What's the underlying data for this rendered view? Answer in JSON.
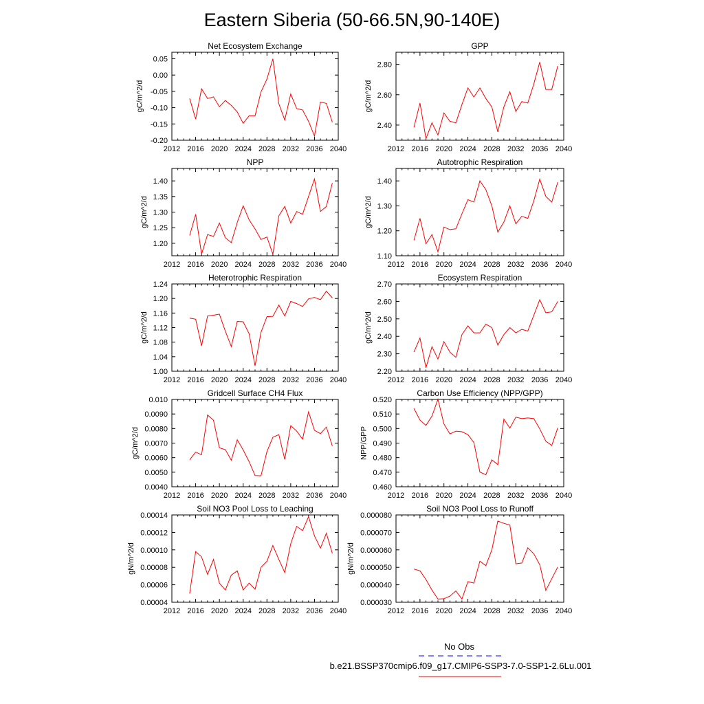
{
  "title": "Eastern Siberia (50-66.5N,90-140E)",
  "legend": {
    "items": [
      {
        "label": "No Obs",
        "color": "#0000ff",
        "dash": true
      },
      {
        "label": "b.e21.BSSP370cmip6.f09_g17.CMIP6-SSP3-7.0-SSP1-2.6Lu.001",
        "color": "#ff0000",
        "dash": false
      }
    ]
  },
  "chart_data": [
    {
      "type": "line",
      "title": "Net Ecosystem Exchange",
      "xlabel": "",
      "ylabel": "gC/m^2/d",
      "xlim": [
        2012,
        2040
      ],
      "ylim": [
        -0.2,
        0.07
      ],
      "xticks": [
        2012,
        2016,
        2020,
        2024,
        2028,
        2032,
        2036,
        2040
      ],
      "xtick_labels": [
        "2012",
        "2016",
        "2020",
        "2024",
        "2028",
        "2032",
        "2036",
        "2040"
      ],
      "yticks": [
        -0.2,
        -0.15,
        -0.1,
        -0.05,
        0.0,
        0.05
      ],
      "ytick_labels": [
        "-0.20",
        "-0.15",
        "-0.10",
        "-0.05",
        "0.00",
        "0.05"
      ],
      "x": [
        2015,
        2016,
        2017,
        2018,
        2019,
        2020,
        2021,
        2022,
        2023,
        2024,
        2025,
        2026,
        2027,
        2028,
        2029,
        2030,
        2031,
        2032,
        2033,
        2034,
        2035,
        2036,
        2037,
        2038,
        2039
      ],
      "series": [
        {
          "color": "#ff0000",
          "values": [
            -0.072,
            -0.135,
            -0.042,
            -0.072,
            -0.067,
            -0.097,
            -0.078,
            -0.093,
            -0.113,
            -0.148,
            -0.125,
            -0.125,
            -0.052,
            -0.012,
            0.05,
            -0.088,
            -0.138,
            -0.058,
            -0.103,
            -0.107,
            -0.142,
            -0.187,
            -0.083,
            -0.087,
            -0.145
          ]
        }
      ]
    },
    {
      "type": "line",
      "title": "GPP",
      "xlabel": "",
      "ylabel": "gC/m^2/d",
      "xlim": [
        2012,
        2040
      ],
      "ylim": [
        2.3,
        2.88
      ],
      "xticks": [
        2012,
        2016,
        2020,
        2024,
        2028,
        2032,
        2036,
        2040
      ],
      "xtick_labels": [
        "2012",
        "2016",
        "2020",
        "2024",
        "2028",
        "2032",
        "2036",
        "2040"
      ],
      "yticks": [
        2.4,
        2.6,
        2.8
      ],
      "ytick_labels": [
        "2.40",
        "2.60",
        "2.80"
      ],
      "x": [
        2015,
        2016,
        2017,
        2018,
        2019,
        2020,
        2021,
        2022,
        2023,
        2024,
        2025,
        2026,
        2027,
        2028,
        2029,
        2030,
        2031,
        2032,
        2033,
        2034,
        2035,
        2036,
        2037,
        2038,
        2039
      ],
      "series": [
        {
          "color": "#ff0000",
          "values": [
            2.385,
            2.545,
            2.31,
            2.415,
            2.335,
            2.48,
            2.425,
            2.415,
            2.535,
            2.645,
            2.585,
            2.645,
            2.575,
            2.52,
            2.355,
            2.52,
            2.62,
            2.49,
            2.555,
            2.545,
            2.67,
            2.815,
            2.635,
            2.635,
            2.79
          ]
        }
      ]
    },
    {
      "type": "line",
      "title": "NPP",
      "xlabel": "",
      "ylabel": "gC/m^2/d",
      "xlim": [
        2012,
        2040
      ],
      "ylim": [
        1.16,
        1.44
      ],
      "xticks": [
        2012,
        2016,
        2020,
        2024,
        2028,
        2032,
        2036,
        2040
      ],
      "xtick_labels": [
        "2012",
        "2016",
        "2020",
        "2024",
        "2028",
        "2032",
        "2036",
        "2040"
      ],
      "yticks": [
        1.2,
        1.25,
        1.3,
        1.35,
        1.4
      ],
      "ytick_labels": [
        "1.20",
        "1.25",
        "1.30",
        "1.35",
        "1.40"
      ],
      "x": [
        2015,
        2016,
        2017,
        2018,
        2019,
        2020,
        2021,
        2022,
        2023,
        2024,
        2025,
        2026,
        2027,
        2028,
        2029,
        2030,
        2031,
        2032,
        2033,
        2034,
        2035,
        2036,
        2037,
        2038,
        2039
      ],
      "series": [
        {
          "color": "#ff0000",
          "values": [
            1.225,
            1.293,
            1.165,
            1.228,
            1.222,
            1.265,
            1.218,
            1.202,
            1.267,
            1.32,
            1.275,
            1.246,
            1.212,
            1.22,
            1.165,
            1.288,
            1.318,
            1.265,
            1.302,
            1.293,
            1.35,
            1.406,
            1.302,
            1.318,
            1.393
          ]
        }
      ]
    },
    {
      "type": "line",
      "title": "Autotrophic Respiration",
      "xlabel": "",
      "ylabel": "gC/m^2/d",
      "xlim": [
        2012,
        2040
      ],
      "ylim": [
        1.1,
        1.45
      ],
      "xticks": [
        2012,
        2016,
        2020,
        2024,
        2028,
        2032,
        2036,
        2040
      ],
      "xtick_labels": [
        "2012",
        "2016",
        "2020",
        "2024",
        "2028",
        "2032",
        "2036",
        "2040"
      ],
      "yticks": [
        1.1,
        1.2,
        1.3,
        1.4
      ],
      "ytick_labels": [
        "1.10",
        "1.20",
        "1.30",
        "1.40"
      ],
      "x": [
        2015,
        2016,
        2017,
        2018,
        2019,
        2020,
        2021,
        2022,
        2023,
        2024,
        2025,
        2026,
        2027,
        2028,
        2029,
        2030,
        2031,
        2032,
        2033,
        2034,
        2035,
        2036,
        2037,
        2038,
        2039
      ],
      "series": [
        {
          "color": "#ff0000",
          "values": [
            1.162,
            1.25,
            1.148,
            1.185,
            1.116,
            1.215,
            1.205,
            1.208,
            1.268,
            1.325,
            1.315,
            1.4,
            1.365,
            1.3,
            1.195,
            1.235,
            1.3,
            1.228,
            1.258,
            1.25,
            1.32,
            1.407,
            1.338,
            1.315,
            1.395
          ]
        }
      ]
    },
    {
      "type": "line",
      "title": "Heterotrophic Respiration",
      "xlabel": "",
      "ylabel": "gC/m^2/d",
      "xlim": [
        2012,
        2040
      ],
      "ylim": [
        1.0,
        1.24
      ],
      "xticks": [
        2012,
        2016,
        2020,
        2024,
        2028,
        2032,
        2036,
        2040
      ],
      "xtick_labels": [
        "2012",
        "2016",
        "2020",
        "2024",
        "2028",
        "2032",
        "2036",
        "2040"
      ],
      "yticks": [
        1.0,
        1.04,
        1.08,
        1.12,
        1.16,
        1.2,
        1.24
      ],
      "ytick_labels": [
        "1.00",
        "1.04",
        "1.08",
        "1.12",
        "1.16",
        "1.20",
        "1.24"
      ],
      "x": [
        2015,
        2016,
        2017,
        2018,
        2019,
        2020,
        2021,
        2022,
        2023,
        2024,
        2025,
        2026,
        2027,
        2028,
        2029,
        2030,
        2031,
        2032,
        2033,
        2034,
        2035,
        2036,
        2037,
        2038,
        2039
      ],
      "series": [
        {
          "color": "#ff0000",
          "values": [
            1.146,
            1.143,
            1.07,
            1.152,
            1.154,
            1.157,
            1.11,
            1.068,
            1.137,
            1.136,
            1.103,
            1.015,
            1.107,
            1.15,
            1.151,
            1.182,
            1.152,
            1.192,
            1.186,
            1.178,
            1.199,
            1.203,
            1.197,
            1.22,
            1.202
          ]
        }
      ]
    },
    {
      "type": "line",
      "title": "Ecosystem Respiration",
      "xlabel": "",
      "ylabel": "gC/m^2/d",
      "xlim": [
        2012,
        2040
      ],
      "ylim": [
        2.2,
        2.7
      ],
      "xticks": [
        2012,
        2016,
        2020,
        2024,
        2028,
        2032,
        2036,
        2040
      ],
      "xtick_labels": [
        "2012",
        "2016",
        "2020",
        "2024",
        "2028",
        "2032",
        "2036",
        "2040"
      ],
      "yticks": [
        2.2,
        2.3,
        2.4,
        2.5,
        2.6,
        2.7
      ],
      "ytick_labels": [
        "2.20",
        "2.30",
        "2.40",
        "2.50",
        "2.60",
        "2.70"
      ],
      "x": [
        2015,
        2016,
        2017,
        2018,
        2019,
        2020,
        2021,
        2022,
        2023,
        2024,
        2025,
        2026,
        2027,
        2028,
        2029,
        2030,
        2031,
        2032,
        2033,
        2034,
        2035,
        2036,
        2037,
        2038,
        2039
      ],
      "series": [
        {
          "color": "#ff0000",
          "values": [
            2.31,
            2.39,
            2.22,
            2.34,
            2.27,
            2.37,
            2.31,
            2.28,
            2.41,
            2.46,
            2.42,
            2.42,
            2.47,
            2.45,
            2.35,
            2.41,
            2.45,
            2.42,
            2.44,
            2.43,
            2.52,
            2.61,
            2.535,
            2.54,
            2.6
          ]
        }
      ]
    },
    {
      "type": "line",
      "title": "Gridcell Surface CH4 Flux",
      "xlabel": "",
      "ylabel": "gC/m^2/d",
      "xlim": [
        2012,
        2040
      ],
      "ylim": [
        0.004,
        0.01
      ],
      "xticks": [
        2012,
        2016,
        2020,
        2024,
        2028,
        2032,
        2036,
        2040
      ],
      "xtick_labels": [
        "2012",
        "2016",
        "2020",
        "2024",
        "2028",
        "2032",
        "2036",
        "2040"
      ],
      "yticks": [
        0.004,
        0.005,
        0.006,
        0.007,
        0.008,
        0.009,
        0.01
      ],
      "ytick_labels": [
        "0.0040",
        "0.0050",
        "0.0060",
        "0.0070",
        "0.0080",
        "0.0090",
        "0.010"
      ],
      "x": [
        2015,
        2016,
        2017,
        2018,
        2019,
        2020,
        2021,
        2022,
        2023,
        2024,
        2025,
        2026,
        2027,
        2028,
        2029,
        2030,
        2031,
        2032,
        2033,
        2034,
        2035,
        2036,
        2037,
        2038,
        2039
      ],
      "series": [
        {
          "color": "#ff0000",
          "values": [
            0.00585,
            0.00638,
            0.0062,
            0.00893,
            0.00858,
            0.00668,
            0.00655,
            0.00582,
            0.00723,
            0.00653,
            0.00572,
            0.00477,
            0.00475,
            0.00642,
            0.0074,
            0.00758,
            0.00588,
            0.0082,
            0.00783,
            0.00727,
            0.00915,
            0.00788,
            0.00765,
            0.0081,
            0.0068
          ]
        }
      ]
    },
    {
      "type": "line",
      "title": "Carbon Use Efficiency (NPP/GPP)",
      "xlabel": "",
      "ylabel": "NPP/GPP",
      "xlim": [
        2012,
        2040
      ],
      "ylim": [
        0.46,
        0.52
      ],
      "xticks": [
        2012,
        2016,
        2020,
        2024,
        2028,
        2032,
        2036,
        2040
      ],
      "xtick_labels": [
        "2012",
        "2016",
        "2020",
        "2024",
        "2028",
        "2032",
        "2036",
        "2040"
      ],
      "yticks": [
        0.46,
        0.47,
        0.48,
        0.49,
        0.5,
        0.51,
        0.52
      ],
      "ytick_labels": [
        "0.460",
        "0.470",
        "0.480",
        "0.490",
        "0.500",
        "0.510",
        "0.520"
      ],
      "x": [
        2015,
        2016,
        2017,
        2018,
        2019,
        2020,
        2021,
        2022,
        2023,
        2024,
        2025,
        2026,
        2027,
        2028,
        2029,
        2030,
        2031,
        2032,
        2033,
        2034,
        2035,
        2036,
        2037,
        2038,
        2039
      ],
      "series": [
        {
          "color": "#ff0000",
          "values": [
            0.5138,
            0.5058,
            0.5022,
            0.5085,
            0.5202,
            0.5032,
            0.4963,
            0.4982,
            0.4978,
            0.4958,
            0.4904,
            0.4701,
            0.4683,
            0.4785,
            0.4752,
            0.5065,
            0.5003,
            0.5078,
            0.5068,
            0.5073,
            0.5068,
            0.4998,
            0.4913,
            0.4884,
            0.5005
          ]
        }
      ]
    },
    {
      "type": "line",
      "title": "Soil NO3 Pool Loss to Leaching",
      "xlabel": "",
      "ylabel": "gN/m^2/d",
      "xlim": [
        2012,
        2040
      ],
      "ylim": [
        4e-05,
        0.00014
      ],
      "xticks": [
        2012,
        2016,
        2020,
        2024,
        2028,
        2032,
        2036,
        2040
      ],
      "xtick_labels": [
        "2012",
        "2016",
        "2020",
        "2024",
        "2028",
        "2032",
        "2036",
        "2040"
      ],
      "yticks": [
        4e-05,
        6e-05,
        8e-05,
        0.0001,
        0.00012,
        0.00014
      ],
      "ytick_labels": [
        "0.00004",
        "0.00006",
        "0.00008",
        "0.00010",
        "0.00012",
        "0.00014"
      ],
      "x": [
        2015,
        2016,
        2017,
        2018,
        2019,
        2020,
        2021,
        2022,
        2023,
        2024,
        2025,
        2026,
        2027,
        2028,
        2029,
        2030,
        2031,
        2032,
        2033,
        2034,
        2035,
        2036,
        2037,
        2038,
        2039
      ],
      "series": [
        {
          "color": "#ff0000",
          "values": [
            5e-05,
            9.8e-05,
            9.2e-05,
            7.2e-05,
            8.9e-05,
            6.2e-05,
            5.4e-05,
            7.1e-05,
            7.6e-05,
            5.4e-05,
            6.2e-05,
            5.5e-05,
            8e-05,
            8.7e-05,
            0.000105,
            8.9e-05,
            7.4e-05,
            0.000107,
            0.000127,
            0.000122,
            0.000138,
            0.000116,
            0.000102,
            0.000119,
            9.6e-05
          ]
        }
      ]
    },
    {
      "type": "line",
      "title": "Soil NO3 Pool Loss to Runoff",
      "xlabel": "",
      "ylabel": "gN/m^2/d",
      "xlim": [
        2012,
        2040
      ],
      "ylim": [
        3e-05,
        8e-05
      ],
      "xticks": [
        2012,
        2016,
        2020,
        2024,
        2028,
        2032,
        2036,
        2040
      ],
      "xtick_labels": [
        "2012",
        "2016",
        "2020",
        "2024",
        "2028",
        "2032",
        "2036",
        "2040"
      ],
      "yticks": [
        3e-05,
        4e-05,
        5e-05,
        6e-05,
        7e-05,
        8e-05
      ],
      "ytick_labels": [
        "0.000030",
        "0.000040",
        "0.000050",
        "0.000060",
        "0.000070",
        "0.000080"
      ],
      "x": [
        2015,
        2016,
        2017,
        2018,
        2019,
        2020,
        2021,
        2022,
        2023,
        2024,
        2025,
        2026,
        2027,
        2028,
        2029,
        2030,
        2031,
        2032,
        2033,
        2034,
        2035,
        2036,
        2037,
        2038,
        2039
      ],
      "series": [
        {
          "color": "#ff0000",
          "values": [
            4.9e-05,
            4.8e-05,
            4.3e-05,
            3.7e-05,
            3.18e-05,
            3.2e-05,
            3.35e-05,
            3.65e-05,
            3.18e-05,
            4.18e-05,
            4.1e-05,
            5.35e-05,
            5.1e-05,
            6e-05,
            7.65e-05,
            7.52e-05,
            7.42e-05,
            5.2e-05,
            5.25e-05,
            6.12e-05,
            5.78e-05,
            5.15e-05,
            3.68e-05,
            4.35e-05,
            5.02e-05
          ]
        }
      ]
    }
  ]
}
